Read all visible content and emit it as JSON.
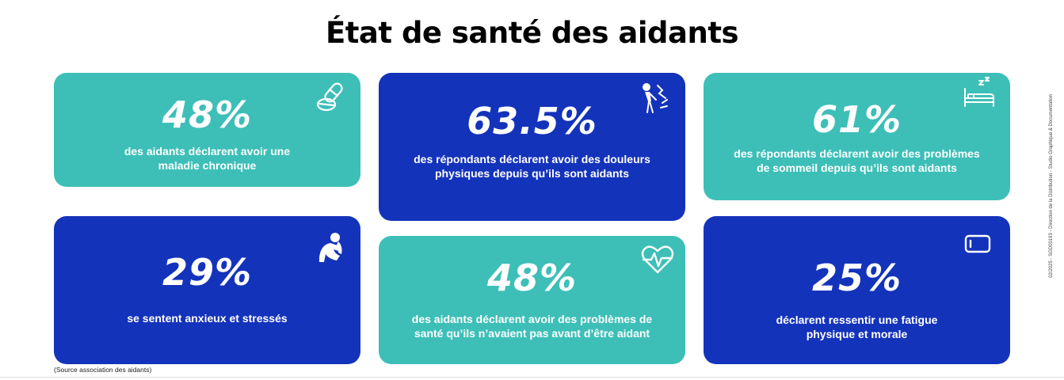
{
  "title": "État de santé des aidants",
  "cards": [
    {
      "percent": "48%",
      "text": "des aidants déclarent avoir une\nmaladie chronique",
      "icon": "pills-icon"
    },
    {
      "percent": "63.5%",
      "text": "des répondants déclarent avoir des douleurs\nphysiques depuis qu’ils sont aidants",
      "icon": "back-pain-icon"
    },
    {
      "percent": "61%",
      "text": "des répondants déclarent avoir des problèmes\nde sommeil depuis qu’ils sont aidants",
      "icon": "sleep-bed-icon"
    },
    {
      "percent": "29%",
      "text": "se sentent anxieux et stressés",
      "icon": "anxious-person-icon"
    },
    {
      "percent": "48%",
      "text": "des aidants déclarent avoir des problèmes de\nsanté qu’ils n’avaient pas avant d’être aidant",
      "icon": "heart-pulse-icon"
    },
    {
      "percent": "25%",
      "text": "déclarent ressentir une fatigue\nphysique et morale",
      "icon": "low-battery-icon"
    }
  ],
  "colors": {
    "teal": "#3dbfb8",
    "blue": "#1433bb"
  },
  "source": "(Source association des aidants)",
  "side_note": "02/2025 - SGD00193 - Direction de la Distribution - Studio Graphique & Documentation"
}
